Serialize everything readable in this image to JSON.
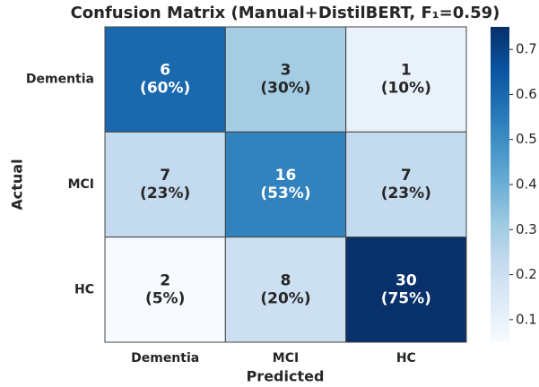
{
  "chart_data": {
    "type": "heatmap",
    "title": "Confusion Matrix (Manual+DistilBERT, F₁=0.59)",
    "xlabel": "Predicted",
    "ylabel": "Actual",
    "x_categories": [
      "Dementia",
      "MCI",
      "HC"
    ],
    "y_categories": [
      "Dementia",
      "MCI",
      "HC"
    ],
    "counts": [
      [
        6,
        3,
        1
      ],
      [
        7,
        16,
        7
      ],
      [
        2,
        8,
        30
      ]
    ],
    "values": [
      [
        0.6,
        0.3,
        0.1
      ],
      [
        0.23,
        0.53,
        0.23
      ],
      [
        0.05,
        0.2,
        0.75
      ]
    ],
    "value_labels": [
      [
        "(60%)",
        "(30%)",
        "(10%)"
      ],
      [
        "(23%)",
        "(53%)",
        "(23%)"
      ],
      [
        "(5%)",
        "(20%)",
        "(75%)"
      ]
    ],
    "colormap": "Blues",
    "clim": [
      0.05,
      0.75
    ],
    "cticks": [
      0.1,
      0.2,
      0.3,
      0.4,
      0.5,
      0.6,
      0.7
    ]
  }
}
